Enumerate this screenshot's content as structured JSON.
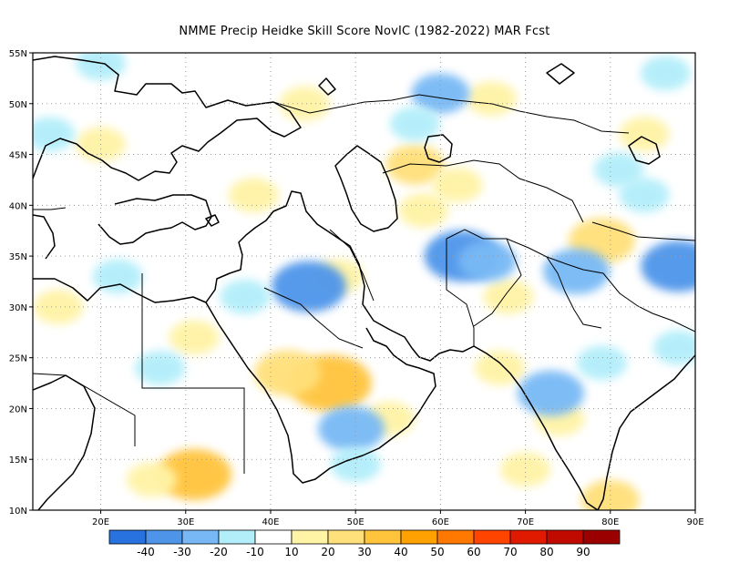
{
  "title": "NMME Precip Heidke Skill Score NovIC (1982-2022) MAR Fcst",
  "map": {
    "lon_range": [
      12,
      90
    ],
    "lat_range": [
      10,
      55
    ],
    "lat_ticks": [
      {
        "value": 55,
        "label": "55N"
      },
      {
        "value": 50,
        "label": "50N"
      },
      {
        "value": 45,
        "label": "45N"
      },
      {
        "value": 40,
        "label": "40N"
      },
      {
        "value": 35,
        "label": "35N"
      },
      {
        "value": 30,
        "label": "30N"
      },
      {
        "value": 25,
        "label": "25N"
      },
      {
        "value": 20,
        "label": "20N"
      },
      {
        "value": 15,
        "label": "15N"
      },
      {
        "value": 10,
        "label": "10N"
      }
    ],
    "lon_ticks": [
      {
        "value": 20,
        "label": "20E"
      },
      {
        "value": 30,
        "label": "30E"
      },
      {
        "value": 40,
        "label": "40E"
      },
      {
        "value": 50,
        "label": "50E"
      },
      {
        "value": 60,
        "label": "60E"
      },
      {
        "value": 70,
        "label": "70E"
      },
      {
        "value": 80,
        "label": "80E"
      },
      {
        "value": 90,
        "label": "90E"
      }
    ],
    "grid": "dotted",
    "skill_regions": [
      {
        "lon": 47,
        "lat": 22.5,
        "score": 35
      },
      {
        "lon": 31,
        "lat": 13.5,
        "score": 30
      },
      {
        "lon": 42,
        "lat": 23.5,
        "score": 25
      },
      {
        "lon": 79,
        "lat": 36.5,
        "score": 25
      },
      {
        "lon": 57,
        "lat": 44,
        "score": 20
      },
      {
        "lon": 62,
        "lat": 42,
        "score": 15
      },
      {
        "lon": 48,
        "lat": 33,
        "score": 15
      },
      {
        "lon": 58,
        "lat": 39.5,
        "score": 15
      },
      {
        "lon": 26,
        "lat": 13,
        "score": 15
      },
      {
        "lon": 67,
        "lat": 24,
        "score": 15
      },
      {
        "lon": 74,
        "lat": 19,
        "score": 15
      },
      {
        "lon": 70,
        "lat": 14,
        "score": 15
      },
      {
        "lon": 66,
        "lat": 50.5,
        "score": 15
      },
      {
        "lon": 44,
        "lat": 50,
        "score": 15
      },
      {
        "lon": 31,
        "lat": 27,
        "score": 15
      },
      {
        "lon": 84,
        "lat": 47,
        "score": 15
      },
      {
        "lon": 80,
        "lat": 11,
        "score": 20
      },
      {
        "lon": 38,
        "lat": 41,
        "score": 15
      },
      {
        "lon": 20,
        "lat": 46,
        "score": 15
      },
      {
        "lon": 15,
        "lat": 30,
        "score": 15
      },
      {
        "lon": 68,
        "lat": 31,
        "score": 15
      },
      {
        "lon": 54,
        "lat": 19,
        "score": 15
      },
      {
        "lon": 88,
        "lat": 34,
        "score": -30
      },
      {
        "lon": 76,
        "lat": 33.5,
        "score": -25
      },
      {
        "lon": 44.5,
        "lat": 32,
        "score": -30
      },
      {
        "lon": 62.5,
        "lat": 35,
        "score": -30
      },
      {
        "lon": 73,
        "lat": 21.5,
        "score": -25
      },
      {
        "lon": 49.5,
        "lat": 18,
        "score": -25
      },
      {
        "lon": 27,
        "lat": 24,
        "score": -15
      },
      {
        "lon": 84,
        "lat": 41,
        "score": -15
      },
      {
        "lon": 65.5,
        "lat": 34.5,
        "score": -20
      },
      {
        "lon": 79,
        "lat": 24.5,
        "score": -15
      },
      {
        "lon": 60,
        "lat": 51,
        "score": -20
      },
      {
        "lon": 20,
        "lat": 54,
        "score": -15
      },
      {
        "lon": 14,
        "lat": 47,
        "score": -15
      },
      {
        "lon": 37,
        "lat": 31,
        "score": -15
      },
      {
        "lon": 50,
        "lat": 14.5,
        "score": -15
      },
      {
        "lon": 86.5,
        "lat": 53,
        "score": -15
      },
      {
        "lon": 88,
        "lat": 26,
        "score": -15
      },
      {
        "lon": 22,
        "lat": 33,
        "score": -15
      },
      {
        "lon": 81,
        "lat": 43.5,
        "score": -15
      },
      {
        "lon": 57,
        "lat": 48,
        "score": -15
      }
    ]
  },
  "colorbar": {
    "levels": [
      {
        "label": "-40",
        "color": "#2872e0"
      },
      {
        "label": "-30",
        "color": "#4e95ea"
      },
      {
        "label": "-20",
        "color": "#78b9f5"
      },
      {
        "label": "-10",
        "color": "#b2eefa"
      },
      {
        "label": "10",
        "color": "#ffffff"
      },
      {
        "label": "20",
        "color": "#fff3a6"
      },
      {
        "label": "30",
        "color": "#ffe07a"
      },
      {
        "label": "40",
        "color": "#ffc43c"
      },
      {
        "label": "50",
        "color": "#ffa100"
      },
      {
        "label": "60",
        "color": "#ff7800"
      },
      {
        "label": "70",
        "color": "#ff4400"
      },
      {
        "label": "80",
        "color": "#e01a00"
      },
      {
        "label": "90",
        "color": "#c00a00"
      },
      {
        "label": "",
        "color": "#9a0000"
      }
    ]
  }
}
